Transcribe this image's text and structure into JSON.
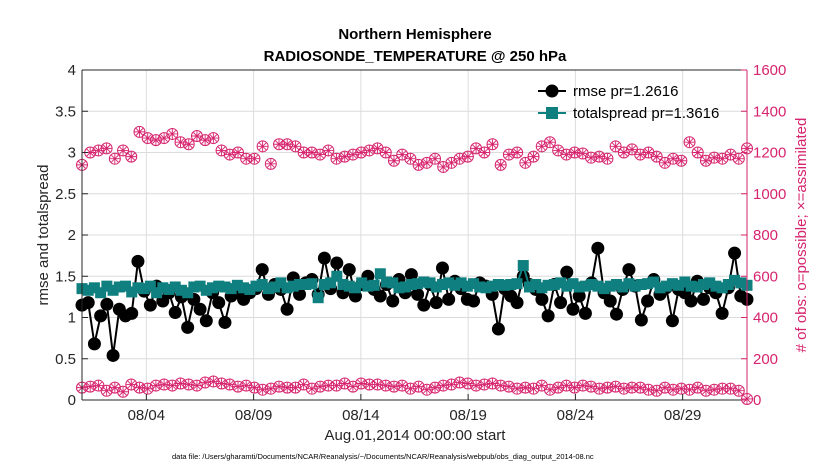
{
  "chart_data": {
    "type": "line",
    "title": "Northern Hemisphere",
    "subtitle": "RADIOSONDE_TEMPERATURE @ 250 hPa",
    "xlabel": "Aug.01,2014 00:00:00 start",
    "ylabel_left": "rmse and totalspread",
    "ylabel_right": "# of obs: o=possible; ×=assimilated",
    "footnote": "data file: /Users/gharamti/Documents/NCAR/Reanalysis/~/Documents/NCAR/Reanalysis/webpub/obs_diag_output_2014-08.nc",
    "xlim": [
      1,
      32
    ],
    "ylim_left": [
      0,
      4
    ],
    "ylim_right": [
      0,
      1600
    ],
    "x_ticks": [
      {
        "value": 4,
        "label": "08/04"
      },
      {
        "value": 9,
        "label": "08/09"
      },
      {
        "value": 14,
        "label": "08/14"
      },
      {
        "value": 19,
        "label": "08/19"
      },
      {
        "value": 24,
        "label": "08/24"
      },
      {
        "value": 29,
        "label": "08/29"
      }
    ],
    "y_ticks_left": [
      "0",
      "0.5",
      "1",
      "1.5",
      "2",
      "2.5",
      "3",
      "3.5",
      "4"
    ],
    "y_ticks_right": [
      "0",
      "200",
      "400",
      "600",
      "800",
      "1000",
      "1200",
      "1400",
      "1600"
    ],
    "legend": {
      "placement": "top-right",
      "entries": [
        "rmse pr=1.2616",
        "totalspread pr=1.3616"
      ]
    },
    "colors": {
      "rmse": "#000000",
      "totalspread": "#0f7f7f",
      "obs": "#d6246e",
      "axis": "#262626"
    },
    "series": [
      {
        "name": "rmse",
        "axis": "left",
        "marker": "filled-circle",
        "values": [
          1.15,
          1.18,
          0.68,
          1.02,
          1.16,
          0.54,
          1.1,
          1.02,
          1.05,
          1.68,
          1.32,
          1.15,
          1.38,
          1.2,
          1.3,
          1.06,
          1.25,
          0.88,
          1.22,
          1.1,
          0.96,
          1.3,
          1.18,
          0.94,
          1.26,
          1.3,
          1.22,
          1.3,
          1.35,
          1.58,
          1.28,
          1.4,
          1.34,
          1.1,
          1.48,
          1.28,
          1.42,
          1.46,
          1.28,
          1.72,
          1.35,
          1.66,
          1.3,
          1.58,
          1.26,
          1.4,
          1.5,
          1.34,
          1.26,
          1.4,
          1.2,
          1.46,
          1.3,
          1.52,
          1.28,
          1.15,
          1.4,
          1.18,
          1.6,
          1.22,
          1.44,
          1.35,
          1.22,
          1.2,
          1.42,
          1.38,
          1.28,
          0.86,
          1.35,
          1.26,
          1.18,
          1.5,
          1.4,
          1.34,
          1.22,
          1.02,
          1.4,
          1.18,
          1.55,
          1.1,
          1.26,
          1.05,
          1.42,
          1.84,
          1.3,
          1.2,
          1.04,
          1.34,
          1.58,
          1.38,
          0.97,
          1.2,
          1.46,
          1.28,
          1.36,
          0.96,
          1.34,
          1.3,
          1.2,
          1.44,
          1.22,
          1.36,
          1.3,
          1.05,
          1.36,
          1.78,
          1.26,
          1.22
        ]
      },
      {
        "name": "totalspread",
        "axis": "left",
        "marker": "filled-square",
        "values": [
          1.35,
          1.33,
          1.36,
          1.3,
          1.38,
          1.33,
          1.37,
          1.38,
          1.31,
          1.36,
          1.35,
          1.38,
          1.3,
          1.36,
          1.34,
          1.37,
          1.33,
          1.3,
          1.37,
          1.38,
          1.33,
          1.36,
          1.38,
          1.37,
          1.35,
          1.39,
          1.36,
          1.34,
          1.38,
          1.4,
          1.35,
          1.37,
          1.42,
          1.36,
          1.38,
          1.4,
          1.4,
          1.41,
          1.24,
          1.4,
          1.42,
          1.5,
          1.4,
          1.38,
          1.36,
          1.42,
          1.38,
          1.39,
          1.53,
          1.43,
          1.42,
          1.36,
          1.37,
          1.4,
          1.41,
          1.43,
          1.42,
          1.37,
          1.4,
          1.42,
          1.39,
          1.42,
          1.38,
          1.41,
          1.37,
          1.36,
          1.38,
          1.4,
          1.39,
          1.4,
          1.41,
          1.63,
          1.37,
          1.4,
          1.36,
          1.39,
          1.4,
          1.42,
          1.38,
          1.41,
          1.37,
          1.38,
          1.4,
          1.38,
          1.35,
          1.38,
          1.4,
          1.37,
          1.41,
          1.38,
          1.4,
          1.41,
          1.43,
          1.36,
          1.38,
          1.41,
          1.39,
          1.43,
          1.38,
          1.37,
          1.4,
          1.42,
          1.38,
          1.36,
          1.4,
          1.45,
          1.42,
          1.39
        ]
      },
      {
        "name": "obs_possible",
        "axis": "right",
        "marker": "circle-star",
        "values": [
          1140,
          1200,
          1210,
          1220,
          1170,
          1210,
          1180,
          1300,
          1270,
          1260,
          1270,
          1290,
          1250,
          1240,
          1280,
          1260,
          1270,
          1210,
          1190,
          1200,
          1170,
          1170,
          1230,
          1145,
          1240,
          1240,
          1230,
          1200,
          1200,
          1190,
          1210,
          1170,
          1180,
          1190,
          1200,
          1210,
          1220,
          1200,
          1160,
          1190,
          1170,
          1140,
          1150,
          1170,
          1130,
          1150,
          1170,
          1180,
          1220,
          1200,
          1240,
          1140,
          1190,
          1200,
          1150,
          1180,
          1230,
          1250,
          1210,
          1190,
          1200,
          1195,
          1175,
          1180,
          1170,
          1230,
          1200,
          1215,
          1190,
          1200,
          1180,
          1150,
          1170,
          1160,
          1250,
          1200,
          1160,
          1175,
          1170,
          1190,
          1170,
          1220
        ],
        "subsampled_from": 124
      },
      {
        "name": "obs_assimilated",
        "axis": "right",
        "marker": "circle-star",
        "values": [
          60,
          65,
          70,
          45,
          60,
          40,
          75,
          60,
          55,
          70,
          75,
          70,
          80,
          75,
          70,
          85,
          90,
          80,
          75,
          65,
          70,
          60,
          50,
          55,
          65,
          60,
          60,
          75,
          55,
          65,
          70,
          70,
          80,
          65,
          80,
          75,
          75,
          70,
          65,
          70,
          55,
          65,
          50,
          60,
          70,
          75,
          85,
          80,
          70,
          75,
          80,
          70,
          65,
          55,
          60,
          55,
          70,
          50,
          60,
          70,
          60,
          70,
          65,
          55,
          60,
          65,
          55,
          60,
          60,
          50,
          45,
          60,
          50,
          55,
          50,
          60,
          45,
          50,
          55,
          55,
          45,
          5
        ],
        "subsampled_from": 124
      }
    ]
  }
}
